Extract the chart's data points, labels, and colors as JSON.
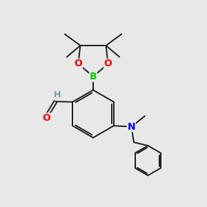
{
  "bg_color": "#e8e8e8",
  "bond_color": "#1a1a1a",
  "bond_width": 1.4,
  "atom_colors": {
    "O": "#ff0000",
    "B": "#00cc00",
    "N": "#0000ff",
    "H": "#7a9a9a"
  },
  "scale": 1.0
}
